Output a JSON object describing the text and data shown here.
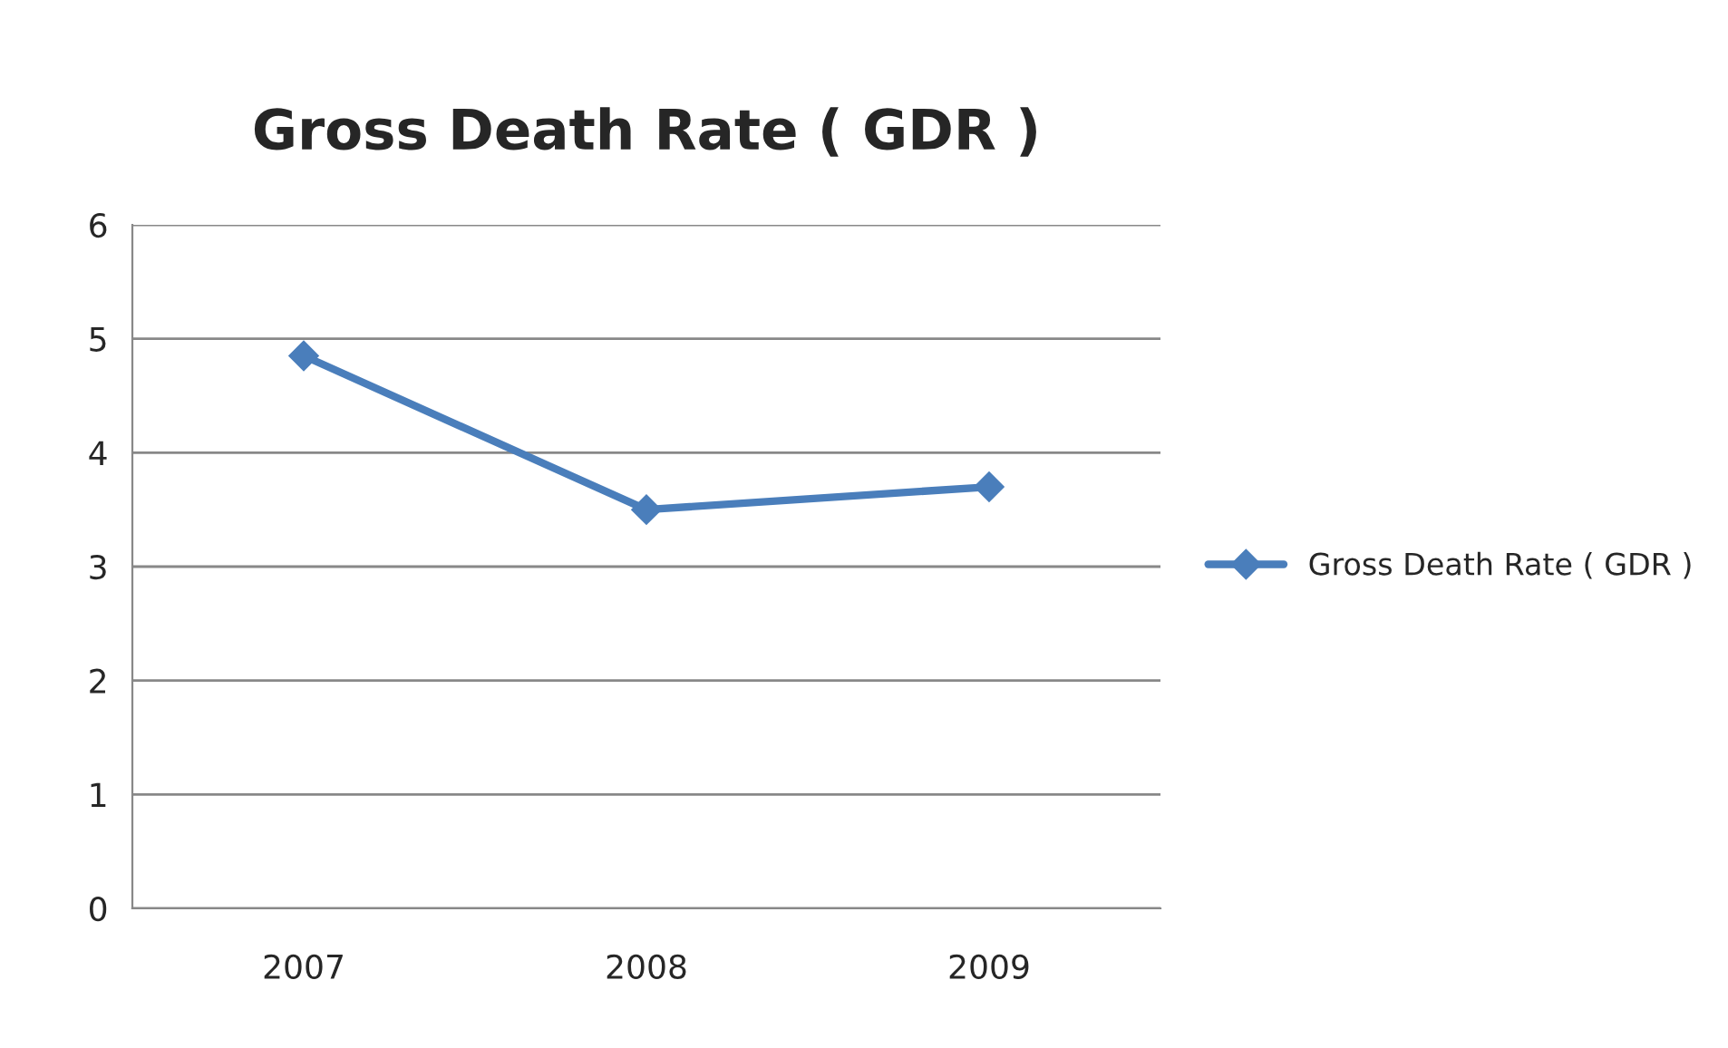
{
  "chart_data": {
    "type": "line",
    "title": "Gross Death Rate ( GDR )",
    "categories": [
      "2007",
      "2008",
      "2009"
    ],
    "series": [
      {
        "name": "Gross Death Rate ( GDR )",
        "color": "#4a7ebb",
        "values": [
          4.85,
          3.5,
          3.7
        ]
      }
    ],
    "ylim": [
      0,
      6
    ],
    "yticks": [
      0,
      1,
      2,
      3,
      4,
      5,
      6
    ],
    "grid": "y",
    "legend": "right",
    "marker": "diamond",
    "line_style": "solid"
  }
}
